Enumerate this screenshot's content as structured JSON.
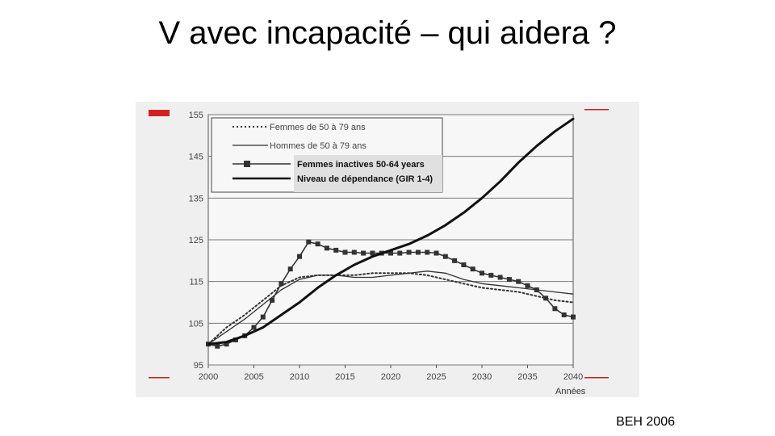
{
  "slide": {
    "title": "V  avec incapacité – qui aidera ?",
    "source": "BEH 2006"
  },
  "chart_data": {
    "type": "line",
    "title": "",
    "xlabel": "Années",
    "ylabel": "",
    "xlim": [
      2000,
      2040
    ],
    "ylim": [
      95,
      155
    ],
    "x_ticks": [
      2000,
      2005,
      2010,
      2015,
      2020,
      2025,
      2030,
      2035,
      2040
    ],
    "y_ticks": [
      95,
      105,
      115,
      125,
      135,
      145,
      155
    ],
    "grid": "horizontal",
    "legend_position": "top-left",
    "series": [
      {
        "name": "Femmes de 50 à 79 ans",
        "style": "dotted",
        "color": "#333333",
        "x": [
          2000,
          2002,
          2004,
          2006,
          2008,
          2010,
          2012,
          2014,
          2016,
          2018,
          2020,
          2022,
          2024,
          2026,
          2028,
          2030,
          2032,
          2034,
          2036,
          2038,
          2040
        ],
        "y": [
          100,
          104,
          107,
          110.5,
          114,
          116,
          116.5,
          116.5,
          116.5,
          117,
          117,
          117,
          116.5,
          115.5,
          114.5,
          113.5,
          113,
          112.5,
          111.5,
          110.5,
          110
        ]
      },
      {
        "name": "Hommes de 50 à 79 ans",
        "style": "solid-thin",
        "color": "#333333",
        "x": [
          2000,
          2002,
          2004,
          2006,
          2008,
          2010,
          2012,
          2014,
          2016,
          2018,
          2020,
          2022,
          2024,
          2026,
          2028,
          2030,
          2032,
          2034,
          2036,
          2038,
          2040
        ],
        "y": [
          100,
          103,
          106,
          109.5,
          113,
          115.5,
          116.5,
          116.5,
          116,
          116,
          116.5,
          117,
          117.5,
          117,
          115.5,
          114.5,
          114,
          113.5,
          113,
          112.5,
          112
        ]
      },
      {
        "name": "Femmes inactives 50-64 years",
        "style": "solid-markers",
        "color": "#333333",
        "x": [
          2000,
          2001,
          2002,
          2003,
          2004,
          2005,
          2006,
          2007,
          2008,
          2009,
          2010,
          2011,
          2012,
          2013,
          2014,
          2015,
          2016,
          2017,
          2018,
          2019,
          2020,
          2021,
          2022,
          2023,
          2024,
          2025,
          2026,
          2027,
          2028,
          2029,
          2030,
          2031,
          2032,
          2033,
          2034,
          2035,
          2036,
          2037,
          2038,
          2039,
          2040
        ],
        "y": [
          100,
          99.5,
          100,
          101,
          102,
          104,
          106.5,
          110.5,
          114.5,
          118,
          121,
          124.5,
          124,
          123,
          122.5,
          122,
          122,
          121.8,
          121.8,
          121.8,
          121.8,
          121.8,
          122,
          122,
          122,
          121.8,
          121,
          120,
          119,
          118,
          117,
          116.5,
          116,
          115.5,
          115,
          114,
          113,
          111,
          108.5,
          107,
          106.5
        ]
      },
      {
        "name": "Niveau de dépendance (GIR 1-4)",
        "style": "solid-thick",
        "color": "#111111",
        "x": [
          2000,
          2002,
          2004,
          2006,
          2008,
          2010,
          2012,
          2014,
          2016,
          2018,
          2020,
          2022,
          2024,
          2026,
          2028,
          2030,
          2032,
          2034,
          2036,
          2038,
          2040
        ],
        "y": [
          100,
          100.5,
          102,
          104,
          107,
          110,
          113.5,
          116.5,
          119,
          121,
          122.5,
          124,
          126,
          128.5,
          131.5,
          135,
          139,
          143.5,
          147.5,
          151,
          154
        ]
      }
    ]
  }
}
